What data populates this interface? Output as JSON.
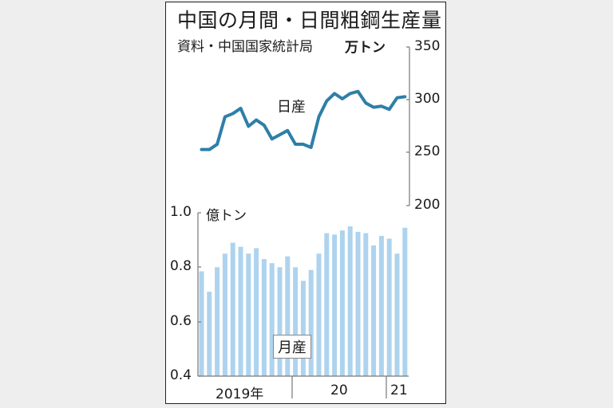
{
  "header": {
    "title": "中国の月間・日間粗鋼生産量",
    "source": "資料・中国国家統計局",
    "unit_right": "万トン",
    "unit_left": "億トン"
  },
  "labels": {
    "line": "日産",
    "bar": "月産"
  },
  "axes": {
    "right_ticks": [
      "350",
      "300",
      "250",
      "200"
    ],
    "left_ticks": [
      "1.0",
      "0.8",
      "0.6",
      "0.4"
    ],
    "x_groups": [
      "2019年",
      "20",
      "21"
    ]
  },
  "colors": {
    "line": "#2e7fa8",
    "bar": "#aed3ee",
    "background": "#eeeeee"
  },
  "chart_data": [
    {
      "type": "line",
      "title": "中国の日間粗鋼生産量（日産）",
      "ylabel": "万トン",
      "ylim": [
        200,
        350
      ],
      "axis_side": "right",
      "x": [
        "2019-01",
        "2019-02",
        "2019-03",
        "2019-04",
        "2019-05",
        "2019-06",
        "2019-07",
        "2019-08",
        "2019-09",
        "2019-10",
        "2019-11",
        "2019-12",
        "2020-01",
        "2020-02",
        "2020-03",
        "2020-04",
        "2020-05",
        "2020-06",
        "2020-07",
        "2020-08",
        "2020-09",
        "2020-10",
        "2020-11",
        "2020-12",
        "2021-01",
        "2021-02",
        "2021-03"
      ],
      "values": [
        253,
        253,
        258,
        284,
        287,
        292,
        275,
        281,
        276,
        263,
        267,
        271,
        258,
        258,
        255,
        284,
        299,
        306,
        301,
        306,
        308,
        297,
        293,
        294,
        291,
        302,
        303
      ]
    },
    {
      "type": "bar",
      "title": "中国の月間粗鋼生産量（月産）",
      "ylabel": "億トン",
      "ylim": [
        0.4,
        1.0
      ],
      "axis_side": "left",
      "x": [
        "2019-01",
        "2019-02",
        "2019-03",
        "2019-04",
        "2019-05",
        "2019-06",
        "2019-07",
        "2019-08",
        "2019-09",
        "2019-10",
        "2019-11",
        "2019-12",
        "2020-01",
        "2020-02",
        "2020-03",
        "2020-04",
        "2020-05",
        "2020-06",
        "2020-07",
        "2020-08",
        "2020-09",
        "2020-10",
        "2020-11",
        "2020-12",
        "2021-01",
        "2021-02",
        "2021-03"
      ],
      "values": [
        0.785,
        0.71,
        0.8,
        0.85,
        0.89,
        0.875,
        0.85,
        0.87,
        0.83,
        0.815,
        0.8,
        0.84,
        0.8,
        0.75,
        0.79,
        0.85,
        0.925,
        0.92,
        0.935,
        0.95,
        0.93,
        0.925,
        0.88,
        0.915,
        0.905,
        0.85,
        0.945
      ],
      "x_group_labels": [
        "2019年",
        "20",
        "21"
      ],
      "grid": false
    }
  ]
}
